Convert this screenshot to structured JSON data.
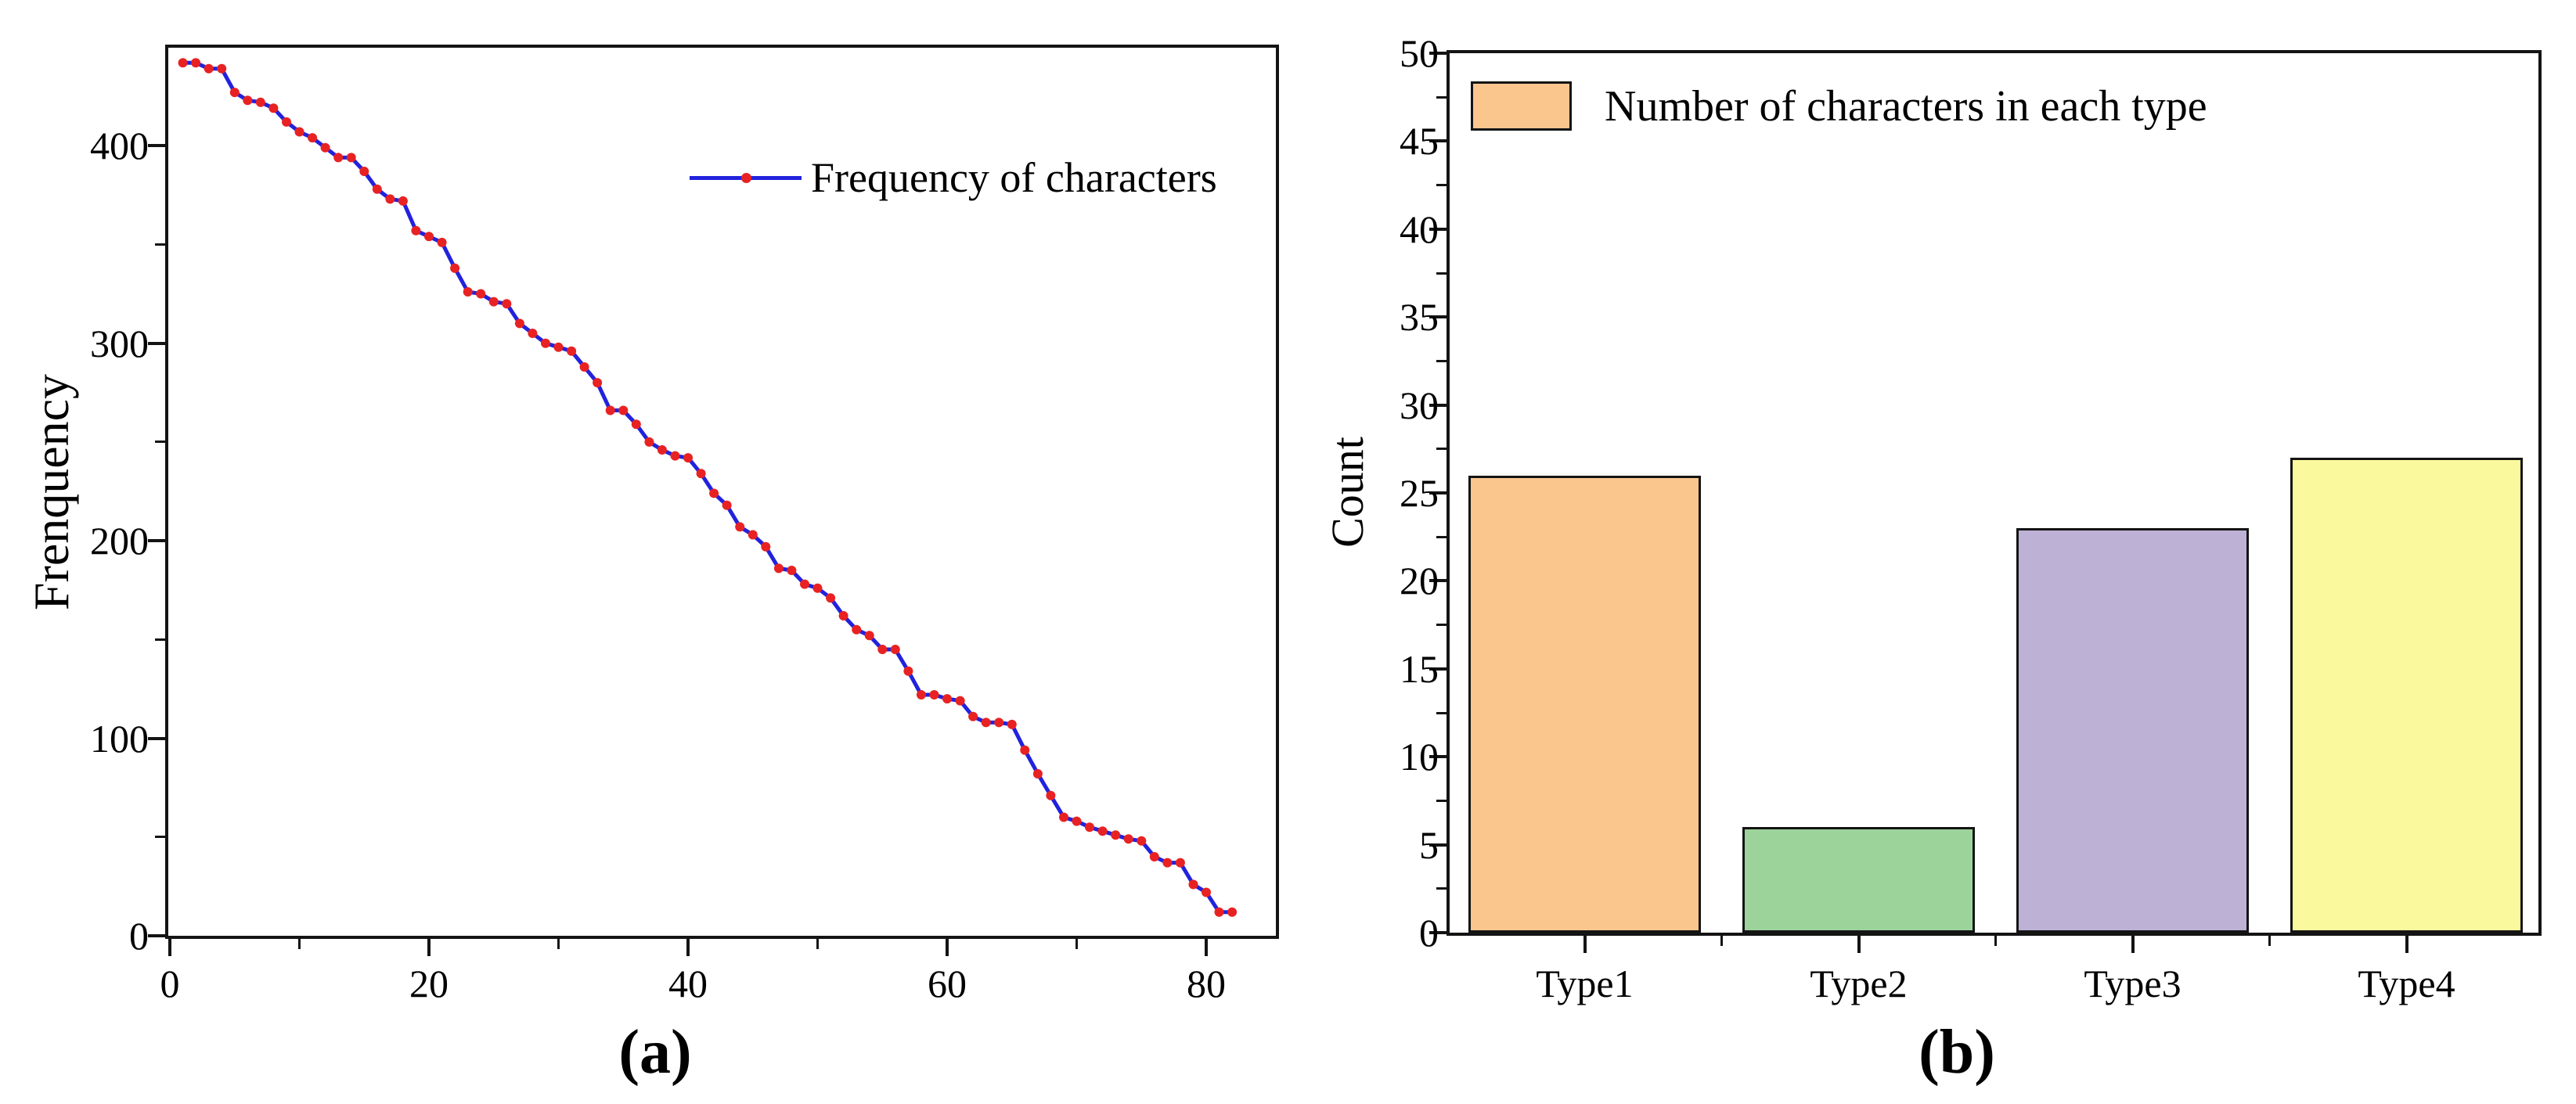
{
  "panel_a": {
    "caption": "(a)",
    "ylabel": "Frenquency",
    "legend_label": "Frequency of characters",
    "x_tick_labels": [
      "0",
      "20",
      "40",
      "60",
      "80"
    ],
    "y_tick_labels": [
      "0",
      "100",
      "200",
      "300",
      "400"
    ]
  },
  "panel_b": {
    "caption": "(b)",
    "ylabel": "Count",
    "legend_label": "Number of characters in each type",
    "x_tick_labels": [
      "Type1",
      "Type2",
      "Type3",
      "Type4"
    ],
    "y_tick_labels": [
      "0",
      "5",
      "10",
      "15",
      "20",
      "25",
      "30",
      "35",
      "40",
      "45",
      "50"
    ]
  },
  "colors": {
    "line": "#2222dd",
    "marker": "#e82222",
    "frame": "#141414",
    "bar_fills": [
      "#fac68e",
      "#9cd39b",
      "#beb1d6",
      "#fbf99d"
    ],
    "legend_swatch": "#fac68e"
  },
  "chart_data": [
    {
      "type": "line",
      "title": "",
      "xlabel": "",
      "ylabel": "Frenquency",
      "legend": [
        "Frequency of characters"
      ],
      "legend_position": "upper right",
      "grid": false,
      "xlim": [
        0,
        85.4
      ],
      "ylim": [
        0,
        449.6
      ],
      "x_ticks_major": [
        0,
        20,
        40,
        60,
        80
      ],
      "x_ticks_minor": [
        10,
        30,
        50,
        70
      ],
      "y_ticks_major": [
        0,
        100,
        200,
        300,
        400
      ],
      "y_ticks_minor": [
        50,
        150,
        250,
        350
      ],
      "x": [
        1,
        2,
        3,
        4,
        5,
        6,
        7,
        8,
        9,
        10,
        11,
        12,
        13,
        14,
        15,
        16,
        17,
        18,
        19,
        20,
        21,
        22,
        23,
        24,
        25,
        26,
        27,
        28,
        29,
        30,
        31,
        32,
        33,
        34,
        35,
        36,
        37,
        38,
        39,
        40,
        41,
        42,
        43,
        44,
        45,
        46,
        47,
        48,
        49,
        50,
        51,
        52,
        53,
        54,
        55,
        56,
        57,
        58,
        59,
        60,
        61,
        62,
        63,
        64,
        65,
        66,
        67,
        68,
        69,
        70,
        71,
        72,
        73,
        74,
        75,
        76,
        77,
        78,
        79,
        80,
        81,
        82
      ],
      "y": [
        442,
        442,
        439,
        439,
        427,
        423,
        422,
        419,
        412,
        407,
        404,
        399,
        394,
        394,
        387,
        378,
        373,
        372,
        357,
        354,
        351,
        338,
        326,
        325,
        321,
        320,
        310,
        305,
        300,
        298,
        296,
        288,
        280,
        266,
        266,
        259,
        250,
        246,
        243,
        242,
        234,
        224,
        218,
        207,
        203,
        197,
        186,
        185,
        178,
        176,
        171,
        162,
        155,
        152,
        145,
        145,
        134,
        122,
        122,
        120,
        119,
        111,
        108,
        108,
        107,
        94,
        82,
        71,
        60,
        58,
        55,
        53,
        51,
        49,
        48,
        40,
        37,
        37,
        26,
        22,
        12,
        12
      ]
    },
    {
      "type": "bar",
      "title": "",
      "xlabel": "",
      "ylabel": "Count",
      "legend": [
        "Number of characters in each type"
      ],
      "legend_position": "upper left",
      "grid": false,
      "categories": [
        "Type1",
        "Type2",
        "Type3",
        "Type4"
      ],
      "values": [
        26,
        6,
        23,
        27
      ],
      "bar_colors": [
        "#fac68e",
        "#9cd39b",
        "#beb1d6",
        "#fbf99d"
      ],
      "ylim": [
        0,
        50
      ],
      "y_ticks_major": [
        0,
        5,
        10,
        15,
        20,
        25,
        30,
        35,
        40,
        45,
        50
      ],
      "y_tick_minor_step": 2.5
    }
  ]
}
